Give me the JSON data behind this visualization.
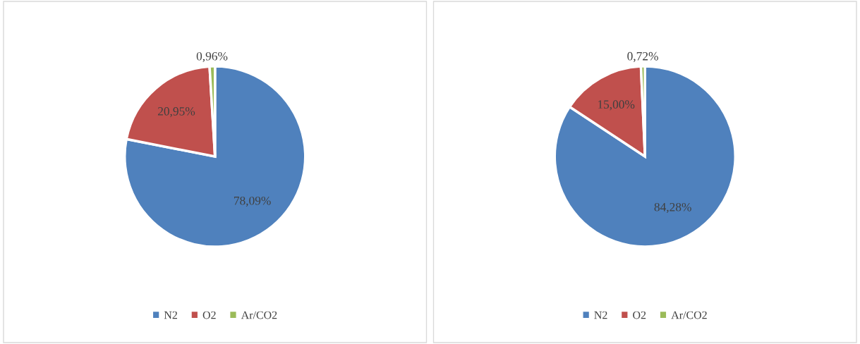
{
  "chart_data": [
    {
      "type": "pie",
      "categories": [
        "N2",
        "O2",
        "Ar/CO2"
      ],
      "values": [
        78.09,
        20.95,
        0.96
      ],
      "colors": [
        "#4f81bd",
        "#c0504d",
        "#9bbb59"
      ],
      "value_labels": [
        "78,09%",
        "20,95%",
        "0,96%"
      ],
      "legend": "bottom"
    },
    {
      "type": "pie",
      "categories": [
        "N2",
        "O2",
        "Ar/CO2"
      ],
      "values": [
        84.28,
        15.0,
        0.72
      ],
      "colors": [
        "#4f81bd",
        "#c0504d",
        "#9bbb59"
      ],
      "value_labels": [
        "84,28%",
        "15,00%",
        "0,72%"
      ],
      "legend": "bottom"
    }
  ]
}
